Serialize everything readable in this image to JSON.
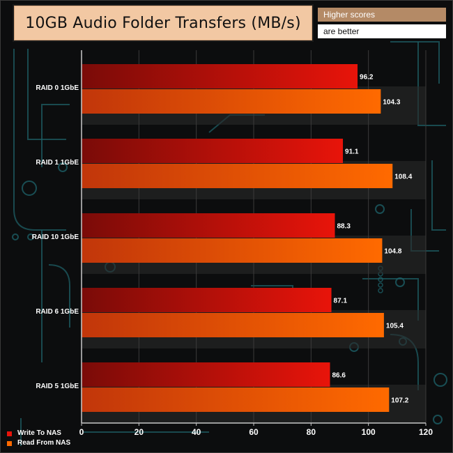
{
  "title": "10GB Audio Folder Transfers (MB/s)",
  "note": {
    "line1": "Higher scores",
    "line2": "are better"
  },
  "colors": {
    "background": "#0c0d0e",
    "circuit": "#1d5f66",
    "write": "#e8140a",
    "write_dark": "#7a0b08",
    "read": "#ff6a00",
    "read_dark": "#c1360a",
    "band": "#2a2a2a",
    "title_bg": "#f2c8a3",
    "note_bg": "#b48a66"
  },
  "chart_data": {
    "type": "bar",
    "orientation": "horizontal",
    "categories": [
      "RAID 0 1GbE",
      "RAID 1 1GbE",
      "RAID 10 1GbE",
      "RAID 6 1GbE",
      "RAID 5 1GbE"
    ],
    "series": [
      {
        "name": "Write To NAS",
        "values": [
          96.2,
          91.1,
          88.3,
          87.1,
          86.6
        ]
      },
      {
        "name": "Read From NAS",
        "values": [
          104.3,
          108.4,
          104.8,
          105.4,
          107.2
        ]
      }
    ],
    "value_labels": [
      [
        "96.2",
        "91.1",
        "88.3",
        "87.1",
        "86.6"
      ],
      [
        "104.3",
        "108.4",
        "104.8",
        "105.4",
        "107.2"
      ]
    ],
    "title": "10GB Audio Folder Transfers (MB/s)",
    "xlim": [
      0,
      120
    ],
    "x_ticks": [
      "0",
      "20",
      "40",
      "60",
      "80",
      "100",
      "120"
    ],
    "grid": true,
    "legend_position": "bottom-left"
  }
}
